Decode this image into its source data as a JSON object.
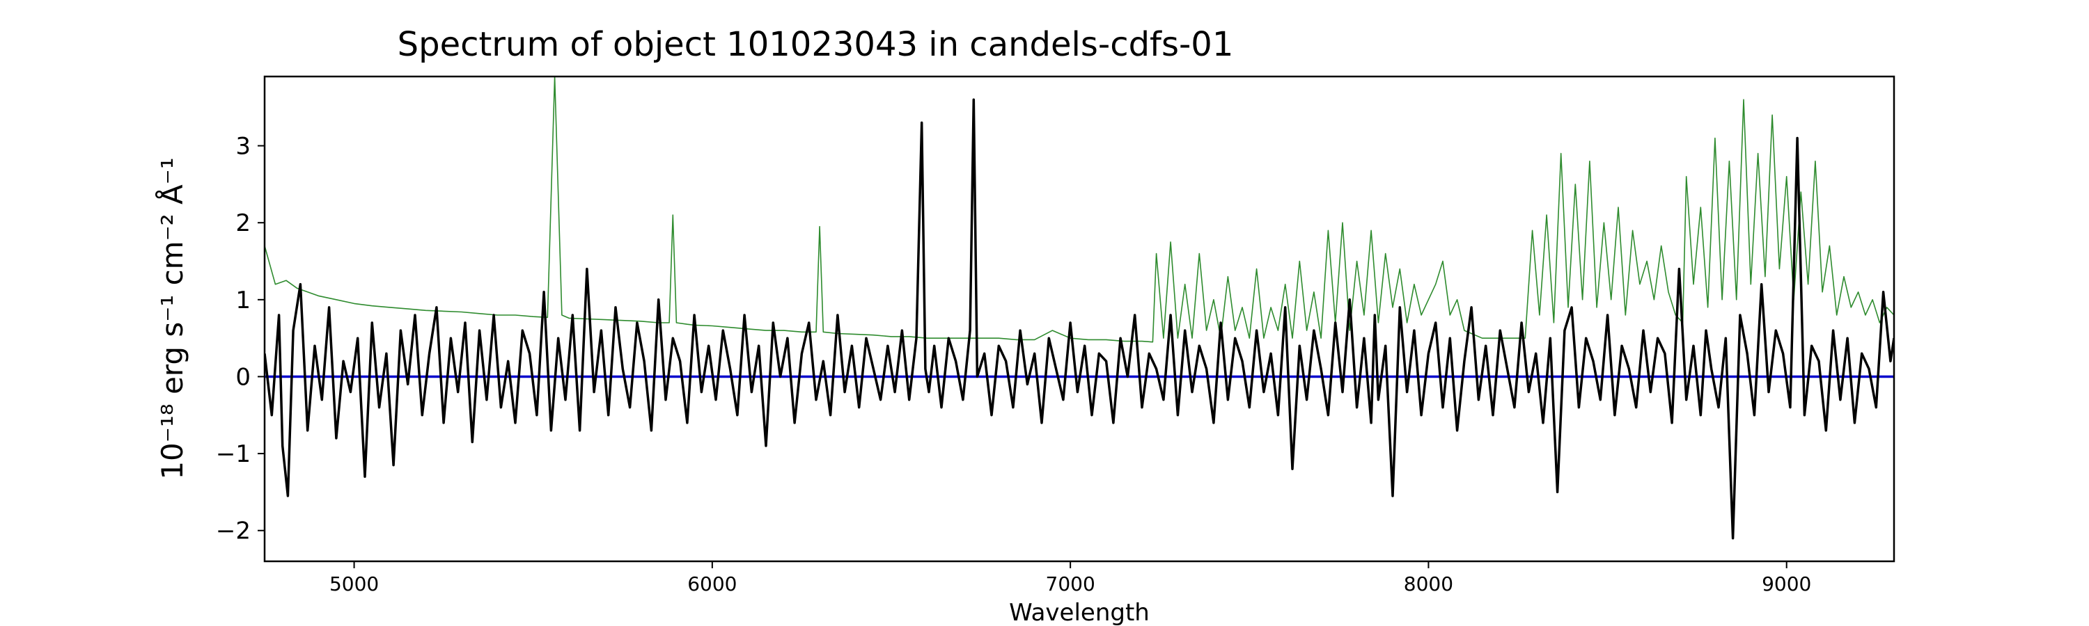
{
  "chart_data": {
    "type": "line",
    "title": "Spectrum of object 101023043 in candels-cdfs-01",
    "xlabel": "Wavelength",
    "ylabel": "10⁻¹⁸ erg s⁻¹ cm⁻² Å⁻¹",
    "xlim": [
      4750,
      9300
    ],
    "ylim": [
      -2.4,
      3.9
    ],
    "xticks": [
      5000,
      6000,
      7000,
      8000,
      9000
    ],
    "xtick_labels": [
      "5000",
      "6000",
      "7000",
      "8000",
      "9000"
    ],
    "yticks": [
      -2,
      -1,
      0,
      1,
      2,
      3
    ],
    "ytick_labels": [
      "−2",
      "−1",
      "0",
      "1",
      "2",
      "3"
    ],
    "grid": false,
    "colors": {
      "flux": "#000000",
      "error": "#2e8b2e",
      "zero": "#0000cc"
    },
    "series": [
      {
        "x": [
          4750,
          4770,
          4790,
          4800,
          4815,
          4830,
          4850,
          4870,
          4890,
          4910,
          4930,
          4950,
          4970,
          4990,
          5010,
          5030,
          5050,
          5070,
          5090,
          5110,
          5130,
          5150,
          5170,
          5190,
          5210,
          5230,
          5250,
          5270,
          5290,
          5310,
          5330,
          5350,
          5370,
          5390,
          5410,
          5430,
          5450,
          5470,
          5490,
          5510,
          5530,
          5550,
          5570,
          5590,
          5610,
          5630,
          5650,
          5670,
          5690,
          5710,
          5730,
          5750,
          5770,
          5790,
          5810,
          5830,
          5850,
          5870,
          5890,
          5910,
          5930,
          5950,
          5970,
          5990,
          6010,
          6030,
          6050,
          6070,
          6090,
          6110,
          6130,
          6150,
          6170,
          6190,
          6210,
          6230,
          6250,
          6270,
          6290,
          6310,
          6330,
          6350,
          6370,
          6390,
          6410,
          6430,
          6450,
          6470,
          6490,
          6510,
          6530,
          6550,
          6570,
          6585,
          6595,
          6605,
          6620,
          6640,
          6660,
          6680,
          6700,
          6720,
          6730,
          6740,
          6760,
          6780,
          6800,
          6820,
          6840,
          6860,
          6880,
          6900,
          6920,
          6940,
          6960,
          6980,
          7000,
          7020,
          7040,
          7060,
          7080,
          7100,
          7120,
          7140,
          7160,
          7180,
          7200,
          7220,
          7240,
          7260,
          7280,
          7300,
          7320,
          7340,
          7360,
          7380,
          7400,
          7420,
          7440,
          7460,
          7480,
          7500,
          7520,
          7540,
          7560,
          7580,
          7600,
          7620,
          7640,
          7660,
          7680,
          7700,
          7720,
          7740,
          7760,
          7780,
          7800,
          7820,
          7840,
          7850,
          7860,
          7880,
          7900,
          7920,
          7940,
          7960,
          7980,
          8000,
          8020,
          8040,
          8060,
          8080,
          8100,
          8120,
          8140,
          8160,
          8180,
          8200,
          8220,
          8240,
          8260,
          8280,
          8300,
          8320,
          8340,
          8360,
          8380,
          8400,
          8420,
          8440,
          8460,
          8480,
          8500,
          8520,
          8540,
          8560,
          8580,
          8600,
          8620,
          8640,
          8660,
          8680,
          8700,
          8720,
          8740,
          8760,
          8775,
          8790,
          8810,
          8830,
          8850,
          8870,
          8890,
          8910,
          8930,
          8950,
          8970,
          8990,
          9010,
          9030,
          9050,
          9070,
          9090,
          9110,
          9130,
          9150,
          9170,
          9190,
          9210,
          9230,
          9250,
          9270,
          9290,
          9300
        ],
        "y": [
          0.3,
          -0.5,
          0.8,
          -0.9,
          -1.55,
          0.6,
          1.2,
          -0.7,
          0.4,
          -0.3,
          0.9,
          -0.8,
          0.2,
          -0.2,
          0.5,
          -1.3,
          0.7,
          -0.4,
          0.3,
          -1.15,
          0.6,
          -0.1,
          0.8,
          -0.5,
          0.3,
          0.9,
          -0.6,
          0.5,
          -0.2,
          0.7,
          -0.85,
          0.6,
          -0.3,
          0.8,
          -0.4,
          0.2,
          -0.6,
          0.6,
          0.3,
          -0.5,
          1.1,
          -0.7,
          0.5,
          -0.3,
          0.8,
          -0.7,
          1.4,
          -0.2,
          0.6,
          -0.5,
          0.9,
          0.1,
          -0.4,
          0.7,
          0.2,
          -0.7,
          1.0,
          -0.3,
          0.5,
          0.2,
          -0.6,
          0.8,
          -0.2,
          0.4,
          -0.3,
          0.6,
          0.1,
          -0.5,
          0.8,
          -0.2,
          0.4,
          -0.9,
          0.7,
          0.0,
          0.5,
          -0.6,
          0.3,
          0.7,
          -0.3,
          0.2,
          -0.5,
          0.8,
          -0.2,
          0.4,
          -0.4,
          0.5,
          0.1,
          -0.3,
          0.4,
          -0.2,
          0.6,
          -0.3,
          0.5,
          3.3,
          0.1,
          -0.2,
          0.4,
          -0.4,
          0.5,
          0.2,
          -0.3,
          0.6,
          3.6,
          0.0,
          0.3,
          -0.5,
          0.4,
          0.2,
          -0.4,
          0.6,
          -0.1,
          0.3,
          -0.6,
          0.5,
          0.1,
          -0.3,
          0.7,
          -0.2,
          0.4,
          -0.5,
          0.3,
          0.2,
          -0.6,
          0.5,
          0.0,
          0.8,
          -0.4,
          0.3,
          0.1,
          -0.3,
          0.8,
          -0.5,
          0.6,
          -0.2,
          0.4,
          0.1,
          -0.6,
          0.7,
          -0.3,
          0.5,
          0.2,
          -0.4,
          0.6,
          -0.2,
          0.3,
          -0.5,
          0.9,
          -1.2,
          0.4,
          -0.3,
          0.6,
          0.1,
          -0.5,
          0.7,
          -0.2,
          1.0,
          -0.4,
          0.5,
          -0.6,
          0.8,
          -0.3,
          0.4,
          -1.55,
          0.9,
          -0.2,
          0.6,
          -0.5,
          0.3,
          0.7,
          -0.4,
          0.5,
          -0.7,
          0.2,
          0.9,
          -0.3,
          0.4,
          -0.5,
          0.6,
          0.1,
          -0.4,
          0.7,
          -0.2,
          0.3,
          -0.6,
          0.5,
          -1.5,
          0.6,
          0.9,
          -0.4,
          0.5,
          0.2,
          -0.3,
          0.8,
          -0.5,
          0.4,
          0.1,
          -0.4,
          0.6,
          -0.2,
          0.5,
          0.3,
          -0.6,
          1.4,
          -0.3,
          0.4,
          -0.5,
          0.6,
          0.1,
          -0.4,
          0.5,
          -2.1,
          0.8,
          0.3,
          -0.5,
          1.2,
          -0.2,
          0.6,
          0.3,
          -0.4,
          3.1,
          -0.5,
          0.4,
          0.2,
          -0.7,
          0.6,
          -0.3,
          0.5,
          -0.6,
          0.3,
          0.1,
          -0.4,
          1.1,
          0.2,
          0.5
        ]
      },
      {
        "x": [
          4750,
          4780,
          4810,
          4840,
          4870,
          4900,
          4950,
          5000,
          5050,
          5100,
          5150,
          5200,
          5250,
          5300,
          5350,
          5400,
          5450,
          5500,
          5540,
          5560,
          5580,
          5600,
          5650,
          5700,
          5750,
          5800,
          5850,
          5880,
          5890,
          5900,
          5930,
          5950,
          6000,
          6050,
          6100,
          6150,
          6200,
          6250,
          6290,
          6300,
          6310,
          6350,
          6400,
          6450,
          6500,
          6550,
          6600,
          6650,
          6700,
          6750,
          6800,
          6850,
          6900,
          6950,
          7000,
          7050,
          7100,
          7150,
          7200,
          7230,
          7240,
          7260,
          7280,
          7300,
          7320,
          7340,
          7360,
          7380,
          7400,
          7420,
          7440,
          7460,
          7480,
          7500,
          7520,
          7540,
          7560,
          7580,
          7600,
          7620,
          7640,
          7660,
          7680,
          7700,
          7720,
          7740,
          7760,
          7780,
          7800,
          7820,
          7840,
          7860,
          7880,
          7900,
          7920,
          7940,
          7960,
          7980,
          8000,
          8020,
          8040,
          8060,
          8080,
          8100,
          8150,
          8200,
          8250,
          8270,
          8290,
          8310,
          8330,
          8350,
          8370,
          8390,
          8410,
          8430,
          8450,
          8470,
          8490,
          8510,
          8530,
          8550,
          8570,
          8590,
          8610,
          8630,
          8650,
          8670,
          8690,
          8710,
          8720,
          8740,
          8760,
          8780,
          8800,
          8820,
          8840,
          8860,
          8880,
          8900,
          8920,
          8940,
          8960,
          8980,
          9000,
          9020,
          9040,
          9060,
          9080,
          9100,
          9120,
          9140,
          9160,
          9180,
          9200,
          9220,
          9240,
          9260,
          9280,
          9300
        ],
        "y": [
          1.7,
          1.2,
          1.25,
          1.15,
          1.1,
          1.05,
          1.0,
          0.95,
          0.92,
          0.9,
          0.88,
          0.86,
          0.85,
          0.84,
          0.82,
          0.8,
          0.8,
          0.78,
          0.77,
          3.9,
          0.8,
          0.76,
          0.75,
          0.74,
          0.73,
          0.72,
          0.7,
          0.7,
          2.1,
          0.7,
          0.68,
          0.67,
          0.66,
          0.64,
          0.62,
          0.6,
          0.6,
          0.58,
          0.58,
          1.95,
          0.58,
          0.56,
          0.55,
          0.54,
          0.52,
          0.52,
          0.5,
          0.5,
          0.5,
          0.5,
          0.5,
          0.48,
          0.48,
          0.6,
          0.5,
          0.48,
          0.48,
          0.46,
          0.46,
          0.45,
          1.6,
          0.5,
          1.75,
          0.5,
          1.2,
          0.5,
          1.6,
          0.6,
          1.0,
          0.5,
          1.3,
          0.6,
          0.9,
          0.5,
          1.4,
          0.5,
          0.9,
          0.6,
          1.2,
          0.5,
          1.5,
          0.6,
          1.1,
          0.5,
          1.9,
          0.7,
          2.0,
          0.6,
          1.5,
          0.8,
          1.9,
          0.7,
          1.6,
          0.9,
          1.4,
          0.7,
          1.2,
          0.8,
          1.0,
          1.2,
          1.5,
          0.8,
          1.0,
          0.6,
          0.5,
          0.5,
          0.5,
          0.5,
          1.9,
          0.8,
          2.1,
          0.7,
          2.9,
          0.9,
          2.5,
          1.0,
          2.8,
          0.9,
          2.0,
          1.0,
          2.2,
          0.8,
          1.9,
          1.2,
          1.5,
          1.0,
          1.7,
          1.1,
          0.8,
          0.7,
          2.6,
          1.2,
          2.2,
          0.9,
          3.1,
          1.0,
          2.8,
          1.0,
          3.6,
          1.2,
          2.9,
          1.3,
          3.4,
          1.4,
          2.6,
          1.0,
          2.4,
          1.2,
          2.8,
          1.1,
          1.7,
          0.8,
          1.3,
          0.9,
          1.1,
          0.8,
          1.0,
          0.7,
          0.9,
          0.8
        ]
      }
    ]
  }
}
